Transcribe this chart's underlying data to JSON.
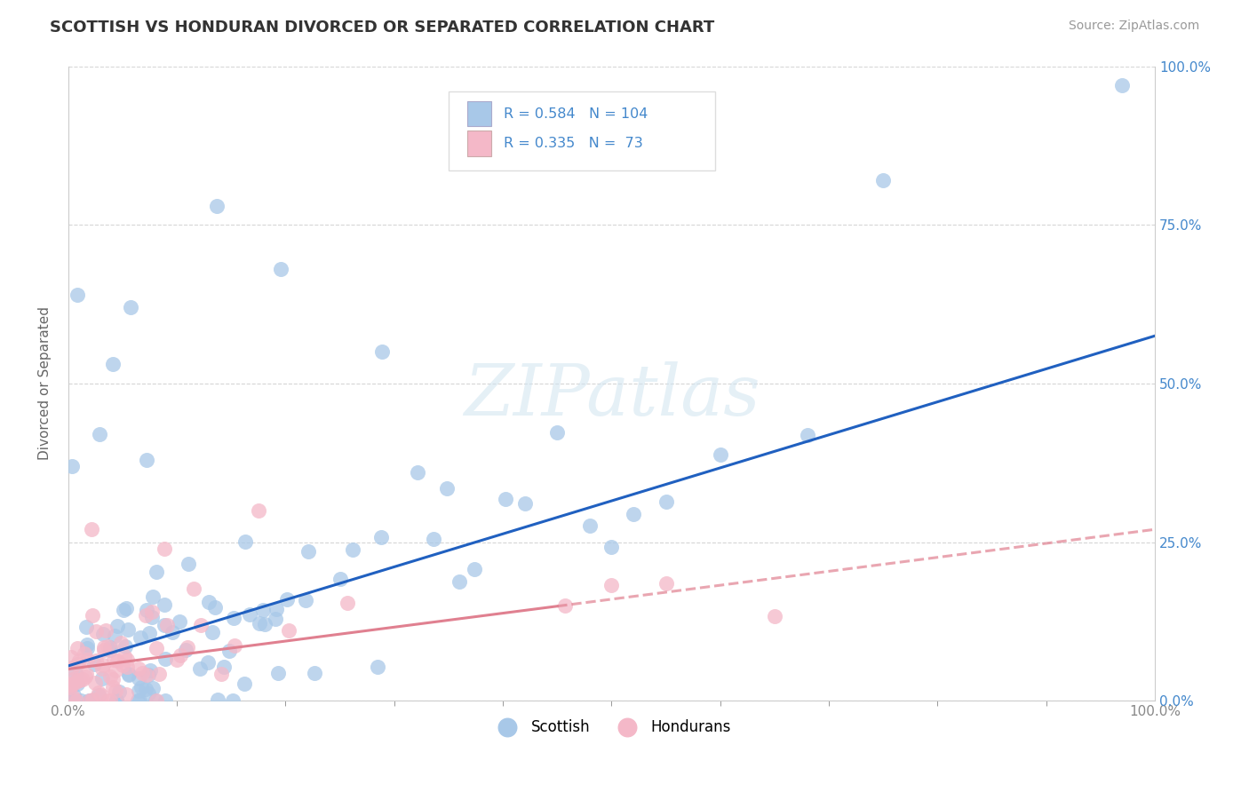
{
  "title": "SCOTTISH VS HONDURAN DIVORCED OR SEPARATED CORRELATION CHART",
  "source": "Source: ZipAtlas.com",
  "ylabel": "Divorced or Separated",
  "scottish_R": 0.584,
  "scottish_N": 104,
  "honduran_R": 0.335,
  "honduran_N": 73,
  "scottish_color": "#a8c8e8",
  "honduran_color": "#f4b8c8",
  "scottish_line_color": "#2060c0",
  "honduran_line_color": "#e08090",
  "watermark": "ZIPatlas",
  "background_color": "#ffffff",
  "grid_color": "#cccccc",
  "legend_color": "#4488cc",
  "title_color": "#333333",
  "source_color": "#999999",
  "ylabel_color": "#666666",
  "tick_color": "#888888",
  "right_tick_color": "#4488cc"
}
